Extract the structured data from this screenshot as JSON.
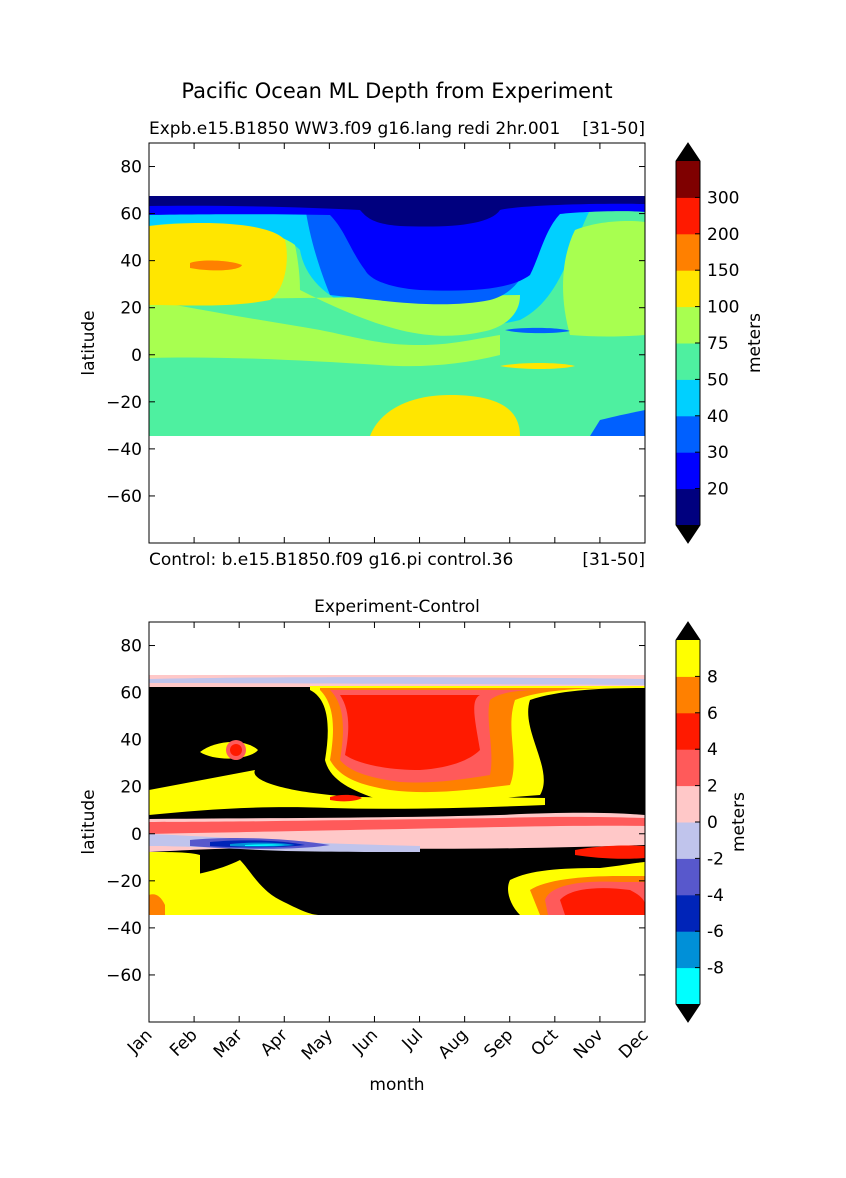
{
  "figure": {
    "suptitle": "Pacific Ocean ML Depth from Experiment"
  },
  "chart_data": [
    {
      "type": "heatmap",
      "title_left": "Expb.e15.B1850 WW3.f09 g16.lang redi 2hr.001",
      "title_right": "[31-50]",
      "footer_left": "Control: b.e15.B1850.f09 g16.pi control.36",
      "footer_right": "[31-50]",
      "xlabel": "",
      "ylabel": "latitude",
      "xlim": [
        0,
        11
      ],
      "ylim": [
        -80,
        90
      ],
      "x_ticks": [],
      "y_ticks": [
        80,
        60,
        40,
        20,
        0,
        -20,
        -40,
        -60
      ],
      "data_lat_range": [
        -35,
        67
      ],
      "colorbar": {
        "label": "meters",
        "levels": [
          "20",
          "30",
          "40",
          "50",
          "75",
          "100",
          "150",
          "200",
          "300"
        ],
        "colors": [
          "#00007f",
          "#0000ff",
          "#0060ff",
          "#00d0ff",
          "#4ef0a0",
          "#a8ff50",
          "#ffe600",
          "#ff8000",
          "#ff1a00",
          "#7f0000"
        ],
        "extend": "both",
        "under_color": "#000000",
        "over_color": "#000000"
      },
      "approx_regions": [
        {
          "months": "Jun-Sep",
          "lat": "25 to 60",
          "value_range": "20-30"
        },
        {
          "months": "Jan-Apr",
          "lat": "20 to 55",
          "value_range": "100-150"
        },
        {
          "months": "Jan-Mar",
          "lat": "37 to 40",
          "value_range": "150-200"
        },
        {
          "months": "Jun-Sep",
          "lat": "-35 to -15",
          "value_range": "100-150"
        },
        {
          "months": "all",
          "lat": "62 to 67",
          "value_range": "<20"
        }
      ]
    },
    {
      "type": "heatmap",
      "title": "Experiment-Control",
      "xlabel": "month",
      "ylabel": "latitude",
      "xlim": [
        0,
        11
      ],
      "ylim": [
        -80,
        90
      ],
      "x_ticks": [
        "Jan",
        "Feb",
        "Mar",
        "Apr",
        "May",
        "Jun",
        "Jul",
        "Aug",
        "Sep",
        "Oct",
        "Nov",
        "Dec"
      ],
      "y_ticks": [
        80,
        60,
        40,
        20,
        0,
        -20,
        -40,
        -60
      ],
      "data_lat_range": [
        -35,
        67
      ],
      "colorbar": {
        "label": "meters",
        "levels": [
          "-8",
          "-6",
          "-4",
          "-2",
          "0",
          "2",
          "4",
          "6",
          "8"
        ],
        "colors": [
          "#00ffff",
          "#0090d8",
          "#0024b8",
          "#5858cc",
          "#c0c4ec",
          "#ffc8c8",
          "#ff5a5a",
          "#ff1a00",
          "#ff8000",
          "#ffff00"
        ],
        "extend": "both",
        "under_color": "#000000",
        "over_color": "#000000"
      },
      "approx_regions": [
        {
          "months": "Jan-May, Oct-Dec",
          "lat": "8 to 62",
          "value_range": ">10"
        },
        {
          "months": "May-Oct",
          "lat": "10 to 62",
          "value_range": "2-8"
        },
        {
          "months": "Feb-Mar",
          "lat": "-5 to -2",
          "value_range": "-8 to -6"
        },
        {
          "months": "Apr-Nov",
          "lat": "-35 to -5",
          "value_range": ">10"
        },
        {
          "months": "Oct-Dec",
          "lat": "-35 to -20",
          "value_range": "2-6"
        }
      ]
    }
  ]
}
